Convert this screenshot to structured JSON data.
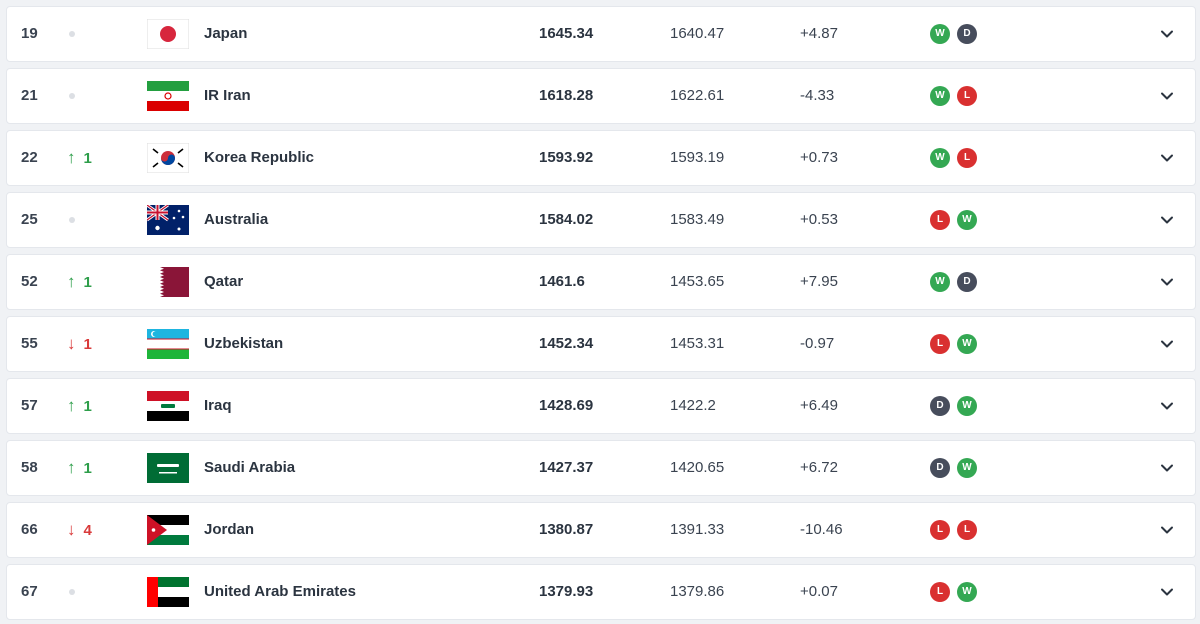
{
  "colors": {
    "up": "#2e9e4a",
    "down": "#d93a3a",
    "win": "#34a853",
    "loss": "#d93030",
    "draw": "#474d5c"
  },
  "rows": [
    {
      "rank": "19",
      "move_dir": "none",
      "move": "",
      "flag": "japan",
      "team": "Japan",
      "points": "1645.34",
      "prev_points": "1640.47",
      "diff": "+4.87",
      "form": [
        "W",
        "D"
      ]
    },
    {
      "rank": "21",
      "move_dir": "none",
      "move": "",
      "flag": "iran",
      "team": "IR Iran",
      "points": "1618.28",
      "prev_points": "1622.61",
      "diff": "-4.33",
      "form": [
        "W",
        "L"
      ]
    },
    {
      "rank": "22",
      "move_dir": "up",
      "move": "1",
      "flag": "korea",
      "team": "Korea Republic",
      "points": "1593.92",
      "prev_points": "1593.19",
      "diff": "+0.73",
      "form": [
        "W",
        "L"
      ]
    },
    {
      "rank": "25",
      "move_dir": "none",
      "move": "",
      "flag": "australia",
      "team": "Australia",
      "points": "1584.02",
      "prev_points": "1583.49",
      "diff": "+0.53",
      "form": [
        "L",
        "W"
      ]
    },
    {
      "rank": "52",
      "move_dir": "up",
      "move": "1",
      "flag": "qatar",
      "team": "Qatar",
      "points": "1461.6",
      "prev_points": "1453.65",
      "diff": "+7.95",
      "form": [
        "W",
        "D"
      ]
    },
    {
      "rank": "55",
      "move_dir": "down",
      "move": "1",
      "flag": "uzbekistan",
      "team": "Uzbekistan",
      "points": "1452.34",
      "prev_points": "1453.31",
      "diff": "-0.97",
      "form": [
        "L",
        "W"
      ]
    },
    {
      "rank": "57",
      "move_dir": "up",
      "move": "1",
      "flag": "iraq",
      "team": "Iraq",
      "points": "1428.69",
      "prev_points": "1422.2",
      "diff": "+6.49",
      "form": [
        "D",
        "W"
      ]
    },
    {
      "rank": "58",
      "move_dir": "up",
      "move": "1",
      "flag": "saudi",
      "team": "Saudi Arabia",
      "points": "1427.37",
      "prev_points": "1420.65",
      "diff": "+6.72",
      "form": [
        "D",
        "W"
      ]
    },
    {
      "rank": "66",
      "move_dir": "down",
      "move": "4",
      "flag": "jordan",
      "team": "Jordan",
      "points": "1380.87",
      "prev_points": "1391.33",
      "diff": "-10.46",
      "form": [
        "L",
        "L"
      ]
    },
    {
      "rank": "67",
      "move_dir": "none",
      "move": "",
      "flag": "uae",
      "team": "United Arab Emirates",
      "points": "1379.93",
      "prev_points": "1379.86",
      "diff": "+0.07",
      "form": [
        "L",
        "W"
      ]
    }
  ]
}
